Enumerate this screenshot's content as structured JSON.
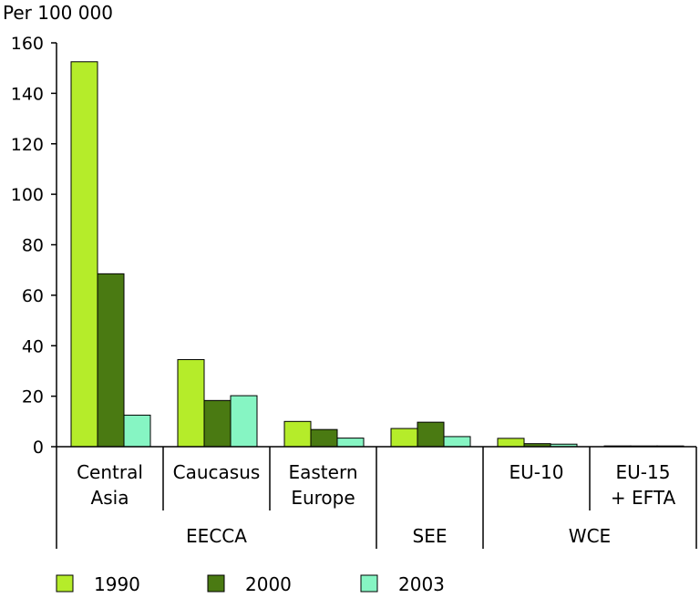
{
  "chart_data": {
    "type": "bar",
    "unit_label": "Per 100 000",
    "ylim": [
      0,
      160
    ],
    "yticks": [
      "0",
      "20",
      "40",
      "60",
      "80",
      "100",
      "120",
      "140",
      "160"
    ],
    "categories": [
      {
        "line1": "Central",
        "line2": "Asia"
      },
      {
        "line1": "Caucasus",
        "line2": ""
      },
      {
        "line1": "Eastern",
        "line2": "Europe"
      },
      {
        "line1": "",
        "line2": ""
      },
      {
        "line1": "EU-10",
        "line2": ""
      },
      {
        "line1": "EU-15",
        "line2": "+ EFTA"
      }
    ],
    "groups": [
      {
        "label": "EECCA",
        "span": 3
      },
      {
        "label": "SEE",
        "span": 1
      },
      {
        "label": "WCE",
        "span": 2
      }
    ],
    "series": [
      {
        "name": "1990",
        "color": "#b5ec2a",
        "values": [
          152.5,
          34.5,
          10,
          7.2,
          3.3,
          0.3
        ]
      },
      {
        "name": "2000",
        "color": "#4a7a12",
        "values": [
          68.5,
          18.3,
          6.8,
          9.7,
          1.2,
          0.2
        ]
      },
      {
        "name": "2003",
        "color": "#86f5c3",
        "values": [
          12.5,
          20.2,
          3.4,
          4.0,
          1.0,
          0.2
        ]
      }
    ],
    "grid": false,
    "legend": "bottom"
  }
}
